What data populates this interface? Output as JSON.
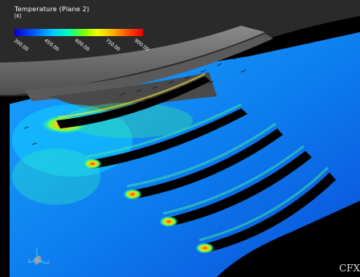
{
  "legend": {
    "title": "Temperature (Plane 2)",
    "unit": "[K]",
    "ticks": [
      "300.00",
      "450.00",
      "600.00",
      "750.00",
      "900.00"
    ]
  },
  "brand": "CFX",
  "axes": {
    "x": "X",
    "y": "Y",
    "z": "Z"
  },
  "colors": {
    "background": "#000000",
    "field_base": "#0f7fe8",
    "hot": "#ff3c00",
    "casing": "#6a6a6a"
  }
}
